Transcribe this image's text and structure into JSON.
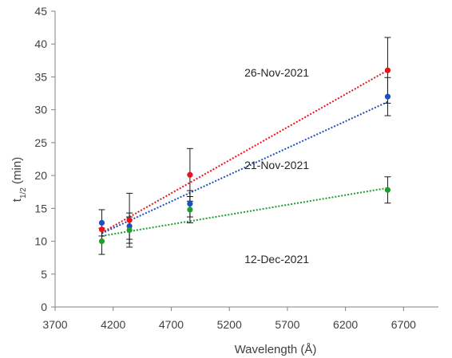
{
  "chart_data": {
    "type": "scatter",
    "xlabel": "Wavelength (Å)",
    "ylabel": {
      "main": "t",
      "sub": "1/2",
      "unit": " (min)"
    },
    "xlim": [
      3700,
      7000
    ],
    "ylim": [
      0,
      45
    ],
    "xticks": [
      3700,
      4200,
      4700,
      5200,
      5700,
      6200,
      6700
    ],
    "yticks": [
      0,
      5,
      10,
      15,
      20,
      25,
      30,
      35,
      40,
      45
    ],
    "grid": false,
    "trendline": "linear, dotted",
    "series": [
      {
        "name": "26-Nov-2021",
        "color": "#e8141c",
        "x": [
          4102,
          4340,
          4861,
          6563
        ],
        "y": [
          11.8,
          13.2,
          20.1,
          36.0
        ],
        "yerr": [
          0,
          4.1,
          4.0,
          5.0
        ],
        "trend": [
          [
            4102,
            11.3
          ],
          [
            6563,
            36.0
          ]
        ]
      },
      {
        "name": "21-Nov-2021",
        "color": "#1f4fbf",
        "x": [
          4102,
          4340,
          4861,
          6563
        ],
        "y": [
          12.8,
          12.3,
          15.7,
          32.0
        ],
        "yerr": [
          2.0,
          2.0,
          2.0,
          2.9
        ],
        "trend": [
          [
            4102,
            11.2
          ],
          [
            6563,
            31.2
          ]
        ]
      },
      {
        "name": "12-Dec-2021",
        "color": "#1e9e2a",
        "x": [
          4102,
          4340,
          4861,
          6563
        ],
        "y": [
          10.0,
          11.7,
          14.8,
          17.8
        ],
        "yerr": [
          2.0,
          2.0,
          2.0,
          2.0
        ],
        "trend": [
          [
            4102,
            10.8
          ],
          [
            6563,
            18.1
          ]
        ]
      }
    ]
  }
}
